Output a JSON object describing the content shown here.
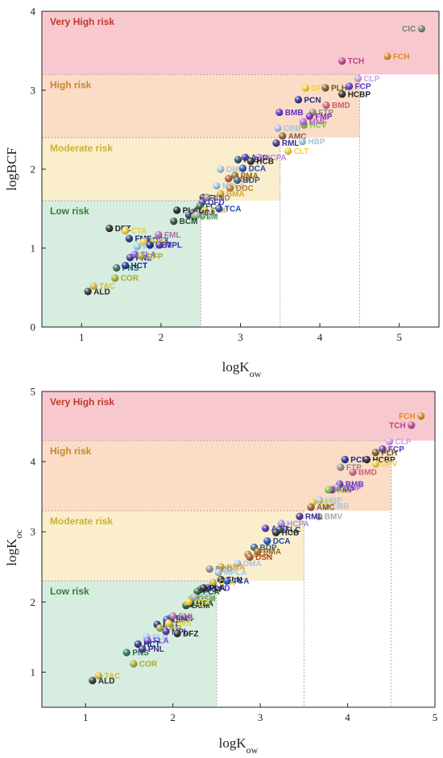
{
  "colors": {
    "zone_very_high": "#f7c9cf",
    "zone_high": "#fbdcc6",
    "zone_moderate": "#fbeecd",
    "zone_low": "#d6ede0",
    "label_very_high": "#c0392b",
    "label_high": "#c8862a",
    "label_moderate": "#c9b230",
    "label_low": "#3d7a3d"
  },
  "chart_data": [
    {
      "type": "scatter",
      "xlabel": "logK",
      "xlabel_sub": "ow",
      "ylabel": "logBCF",
      "ylabel_sub": "",
      "xlim": [
        0.5,
        5.5
      ],
      "ylim": [
        0,
        4
      ],
      "xticks": [
        1,
        2,
        3,
        4,
        5
      ],
      "yticks": [
        0,
        1,
        2,
        3,
        4
      ],
      "zones": [
        {
          "label": "Very High risk",
          "x": [
            0.5,
            5.5
          ],
          "y": [
            3.2,
            4
          ],
          "color_key": "zone_very_high",
          "text_key": "label_very_high"
        },
        {
          "label": "High risk",
          "x": [
            0.5,
            4.5
          ],
          "y": [
            2.4,
            3.2
          ],
          "color_key": "zone_high",
          "text_key": "label_high"
        },
        {
          "label": "Moderate risk",
          "x": [
            0.5,
            3.5
          ],
          "y": [
            1.6,
            2.4
          ],
          "color_key": "zone_moderate",
          "text_key": "label_moderate"
        },
        {
          "label": "Low risk",
          "x": [
            0.5,
            2.5
          ],
          "y": [
            0,
            1.6
          ],
          "color_key": "zone_low",
          "text_key": "label_low"
        }
      ],
      "points": [
        {
          "label": "CIC",
          "x": 5.28,
          "y": 3.78,
          "color": "#7a7a7a"
        },
        {
          "label": "FCH",
          "x": 4.85,
          "y": 3.43,
          "color": "#e08a1e"
        },
        {
          "label": "TCH",
          "x": 4.28,
          "y": 3.37,
          "color": "#c0408a"
        },
        {
          "label": "CLP",
          "x": 4.48,
          "y": 3.15,
          "color": "#cfa0e8"
        },
        {
          "label": "DFV",
          "x": 3.82,
          "y": 3.03,
          "color": "#f2d030"
        },
        {
          "label": "PLH",
          "x": 4.07,
          "y": 3.03,
          "color": "#6b5b1a"
        },
        {
          "label": "FCP",
          "x": 4.37,
          "y": 3.05,
          "color": "#5a32c8"
        },
        {
          "label": "PCN",
          "x": 3.73,
          "y": 2.88,
          "color": "#1a2a8a"
        },
        {
          "label": "HCBP",
          "x": 4.28,
          "y": 2.95,
          "color": "#222222"
        },
        {
          "label": "FTP",
          "x": 3.91,
          "y": 2.72,
          "color": "#8a8a8a"
        },
        {
          "label": "BMD",
          "x": 4.08,
          "y": 2.81,
          "color": "#d05a7a"
        },
        {
          "label": "BMB",
          "x": 3.49,
          "y": 2.72,
          "color": "#5a32c8"
        },
        {
          "label": "CBB",
          "x": 3.47,
          "y": 2.52,
          "color": "#a8c4dc"
        },
        {
          "label": "HCV",
          "x": 3.8,
          "y": 2.56,
          "color": "#7ac440"
        },
        {
          "label": "FMP",
          "x": 3.87,
          "y": 2.67,
          "color": "#7a2aa8"
        },
        {
          "label": "MMF",
          "x": 3.79,
          "y": 2.6,
          "color": "#b060e0"
        },
        {
          "label": "AMC",
          "x": 3.53,
          "y": 2.42,
          "color": "#8a5a30"
        },
        {
          "label": "HBP",
          "x": 3.78,
          "y": 2.35,
          "color": "#a8c4dc"
        },
        {
          "label": "RML",
          "x": 3.45,
          "y": 2.33,
          "color": "#3a2a8a"
        },
        {
          "label": "CLT",
          "x": 3.6,
          "y": 2.23,
          "color": "#f2d030"
        },
        {
          "label": "ACD",
          "x": 3.06,
          "y": 2.15,
          "color": "#4a2aa8"
        },
        {
          "label": "HCPA",
          "x": 3.23,
          "y": 2.15,
          "color": "#b088e0"
        },
        {
          "label": "FLC",
          "x": 2.97,
          "y": 2.12,
          "color": "#1a4a6a"
        },
        {
          "label": "HCB",
          "x": 3.13,
          "y": 2.1,
          "color": "#222222"
        },
        {
          "label": "DMA",
          "x": 2.75,
          "y": 2.0,
          "color": "#a8c4dc"
        },
        {
          "label": "DCA",
          "x": 3.03,
          "y": 2.01,
          "color": "#1a4ab0"
        },
        {
          "label": "DSN",
          "x": 2.85,
          "y": 1.88,
          "color": "#b0502a"
        },
        {
          "label": "PMA",
          "x": 2.93,
          "y": 1.92,
          "color": "#8a6a20"
        },
        {
          "label": "BDP",
          "x": 2.96,
          "y": 1.86,
          "color": "#3a5a7a"
        },
        {
          "label": "MPLA",
          "x": 2.7,
          "y": 1.79,
          "color": "#9ac8e8"
        },
        {
          "label": "DOC",
          "x": 2.87,
          "y": 1.76,
          "color": "#b8802a"
        },
        {
          "label": "BMA",
          "x": 2.75,
          "y": 1.69,
          "color": "#d8a830"
        },
        {
          "label": "FLN",
          "x": 2.53,
          "y": 1.64,
          "color": "#222222"
        },
        {
          "label": "BUD",
          "x": 2.58,
          "y": 1.64,
          "color": "#8a8a8a"
        },
        {
          "label": "PLA",
          "x": 2.2,
          "y": 1.48,
          "color": "#1a1a1a"
        },
        {
          "label": "DFD",
          "x": 2.52,
          "y": 1.58,
          "color": "#5a32c8"
        },
        {
          "label": "FCA",
          "x": 2.49,
          "y": 1.53,
          "color": "#1a5a2a"
        },
        {
          "label": "CTX",
          "x": 2.55,
          "y": 1.48,
          "color": "#c8b830"
        },
        {
          "label": "TCA",
          "x": 2.73,
          "y": 1.5,
          "color": "#1a4ab0"
        },
        {
          "label": "FCT",
          "x": 2.35,
          "y": 1.42,
          "color": "#1a3a8a"
        },
        {
          "label": "HCA",
          "x": 2.4,
          "y": 1.45,
          "color": "#222222"
        },
        {
          "label": "DSM",
          "x": 2.42,
          "y": 1.4,
          "color": "#3aa83a"
        },
        {
          "label": "FDL",
          "x": 2.45,
          "y": 1.42,
          "color": "#a8a8a8"
        },
        {
          "label": "BCM",
          "x": 2.16,
          "y": 1.34,
          "color": "#2a4a2a"
        },
        {
          "label": "DFZ",
          "x": 1.35,
          "y": 1.25,
          "color": "#222222"
        },
        {
          "label": "CTA",
          "x": 1.55,
          "y": 1.22,
          "color": "#f2d030"
        },
        {
          "label": "FMS",
          "x": 1.6,
          "y": 1.12,
          "color": "#1a2a6a"
        },
        {
          "label": "DEX",
          "x": 1.82,
          "y": 1.1,
          "color": "#1a3ab0"
        },
        {
          "label": "FML",
          "x": 1.97,
          "y": 1.17,
          "color": "#b06aa8"
        },
        {
          "label": "PMS",
          "x": 1.78,
          "y": 1.08,
          "color": "#f2d030"
        },
        {
          "label": "FLU",
          "x": 1.7,
          "y": 1.02,
          "color": "#9ac8e8"
        },
        {
          "label": "BET",
          "x": 1.86,
          "y": 1.04,
          "color": "#1a1a6a"
        },
        {
          "label": "MPL",
          "x": 1.98,
          "y": 1.04,
          "color": "#4a2aa8"
        },
        {
          "label": "PNL",
          "x": 1.61,
          "y": 0.88,
          "color": "#3a2a8a"
        },
        {
          "label": "FLA",
          "x": 1.67,
          "y": 0.92,
          "color": "#7a4ad8"
        },
        {
          "label": "DFP",
          "x": 1.75,
          "y": 0.9,
          "color": "#a8a830"
        },
        {
          "label": "PNS",
          "x": 1.44,
          "y": 0.75,
          "color": "#2a6a5a"
        },
        {
          "label": "HCT",
          "x": 1.55,
          "y": 0.78,
          "color": "#1a2a8a"
        },
        {
          "label": "COR",
          "x": 1.42,
          "y": 0.62,
          "color": "#a8a830"
        },
        {
          "label": "ALD",
          "x": 1.08,
          "y": 0.45,
          "color": "#2a2a2a"
        },
        {
          "label": "TAC",
          "x": 1.15,
          "y": 0.52,
          "color": "#d8b830"
        }
      ]
    },
    {
      "type": "scatter",
      "xlabel": "logK",
      "xlabel_sub": "ow",
      "ylabel": "logK",
      "ylabel_sub": "oc",
      "xlim": [
        0.5,
        5
      ],
      "ylim": [
        0.5,
        5
      ],
      "xticks": [
        1,
        2,
        3,
        4,
        5
      ],
      "yticks": [
        1,
        2,
        3,
        4,
        5
      ],
      "zones": [
        {
          "label": "Very High risk",
          "x": [
            0.5,
            5
          ],
          "y": [
            4.3,
            5
          ],
          "color_key": "zone_very_high",
          "text_key": "label_very_high"
        },
        {
          "label": "High risk",
          "x": [
            0.5,
            4.5
          ],
          "y": [
            3.3,
            4.3
          ],
          "color_key": "zone_high",
          "text_key": "label_high"
        },
        {
          "label": "Moderate risk",
          "x": [
            0.5,
            3.5
          ],
          "y": [
            2.3,
            3.3
          ],
          "color_key": "zone_moderate",
          "text_key": "label_moderate"
        },
        {
          "label": "Low risk",
          "x": [
            0.5,
            2.5
          ],
          "y": [
            0.5,
            2.3
          ],
          "color_key": "zone_low",
          "text_key": "label_low"
        }
      ],
      "points": [
        {
          "label": "FCH",
          "x": 4.84,
          "y": 4.65,
          "color": "#e08a1e"
        },
        {
          "label": "TCH",
          "x": 4.73,
          "y": 4.52,
          "color": "#c0408a"
        },
        {
          "label": "CLP",
          "x": 4.48,
          "y": 4.29,
          "color": "#cfa0e8"
        },
        {
          "label": "FCP",
          "x": 4.4,
          "y": 4.18,
          "color": "#5a32c8"
        },
        {
          "label": "PLH",
          "x": 4.32,
          "y": 4.13,
          "color": "#6b5b1a"
        },
        {
          "label": "PCN",
          "x": 3.97,
          "y": 4.03,
          "color": "#1a2a8a"
        },
        {
          "label": "HCBP",
          "x": 4.22,
          "y": 4.03,
          "color": "#222222"
        },
        {
          "label": "DFV",
          "x": 4.32,
          "y": 3.97,
          "color": "#f2d030"
        },
        {
          "label": "FTP",
          "x": 3.92,
          "y": 3.92,
          "color": "#8a8a8a"
        },
        {
          "label": "BMD",
          "x": 4.06,
          "y": 3.85,
          "color": "#d05a7a"
        },
        {
          "label": "BMB",
          "x": 3.91,
          "y": 3.68,
          "color": "#5a32c8"
        },
        {
          "label": "MMF",
          "x": 3.88,
          "y": 3.63,
          "color": "#b060e0"
        },
        {
          "label": "FMP",
          "x": 3.82,
          "y": 3.6,
          "color": "#7a2aa8"
        },
        {
          "label": "HCV",
          "x": 3.78,
          "y": 3.6,
          "color": "#7ac440"
        },
        {
          "label": "HBP",
          "x": 3.68,
          "y": 3.45,
          "color": "#a8c4dc"
        },
        {
          "label": "CBB",
          "x": 3.75,
          "y": 3.37,
          "color": "#a8c4dc"
        },
        {
          "label": "CLT",
          "x": 3.6,
          "y": 3.42,
          "color": "#f2d030"
        },
        {
          "label": "AMC",
          "x": 3.58,
          "y": 3.35,
          "color": "#8a5a30"
        },
        {
          "label": "BMV",
          "x": 3.67,
          "y": 3.22,
          "color": "#a8a8a8"
        },
        {
          "label": "RML",
          "x": 3.45,
          "y": 3.22,
          "color": "#3a2a8a"
        },
        {
          "label": "HCPA",
          "x": 3.24,
          "y": 3.12,
          "color": "#b088e0"
        },
        {
          "label": "ACD",
          "x": 3.06,
          "y": 3.05,
          "color": "#4a2aa8"
        },
        {
          "label": "FLC",
          "x": 3.22,
          "y": 3.03,
          "color": "#1a4a6a"
        },
        {
          "label": "HCB",
          "x": 3.18,
          "y": 2.99,
          "color": "#222222"
        },
        {
          "label": "DCA",
          "x": 3.08,
          "y": 2.87,
          "color": "#1a4ab0"
        },
        {
          "label": "BDP",
          "x": 2.93,
          "y": 2.78,
          "color": "#3a5a7a"
        },
        {
          "label": "PMA",
          "x": 2.97,
          "y": 2.72,
          "color": "#8a6a20"
        },
        {
          "label": "DOC",
          "x": 2.86,
          "y": 2.68,
          "color": "#b8802a"
        },
        {
          "label": "DSN",
          "x": 2.88,
          "y": 2.64,
          "color": "#b0502a"
        },
        {
          "label": "DMA",
          "x": 2.74,
          "y": 2.55,
          "color": "#a8c4dc"
        },
        {
          "label": "BMA",
          "x": 2.55,
          "y": 2.5,
          "color": "#d8a830"
        },
        {
          "label": "BUD",
          "x": 2.42,
          "y": 2.47,
          "color": "#8a8a8a"
        },
        {
          "label": "MPLA",
          "x": 2.52,
          "y": 2.42,
          "color": "#9ac8e8"
        },
        {
          "label": "FLN",
          "x": 2.55,
          "y": 2.32,
          "color": "#222222"
        },
        {
          "label": "CTX",
          "x": 2.46,
          "y": 2.28,
          "color": "#c8b830"
        },
        {
          "label": "TCA",
          "x": 2.62,
          "y": 2.3,
          "color": "#1a4ab0"
        },
        {
          "label": "DFD",
          "x": 2.4,
          "y": 2.2,
          "color": "#5a32c8"
        },
        {
          "label": "FCT",
          "x": 2.32,
          "y": 2.18,
          "color": "#1a3a8a"
        },
        {
          "label": "FCA",
          "x": 2.28,
          "y": 2.15,
          "color": "#1a5a2a"
        },
        {
          "label": "PLA",
          "x": 2.35,
          "y": 2.2,
          "color": "#1a1a1a"
        },
        {
          "label": "HCA",
          "x": 2.2,
          "y": 1.98,
          "color": "#222222"
        },
        {
          "label": "BCM",
          "x": 2.15,
          "y": 1.95,
          "color": "#2a4a2a"
        },
        {
          "label": "DSM",
          "x": 2.22,
          "y": 2.05,
          "color": "#3aa83a"
        },
        {
          "label": "FDL",
          "x": 2.25,
          "y": 2.07,
          "color": "#a8a8a8"
        },
        {
          "label": "CTA",
          "x": 2.18,
          "y": 2.0,
          "color": "#f2d030"
        },
        {
          "label": "FMS",
          "x": 1.97,
          "y": 1.77,
          "color": "#1a2a6a"
        },
        {
          "label": "DEX",
          "x": 1.93,
          "y": 1.75,
          "color": "#1a3ab0"
        },
        {
          "label": "FML",
          "x": 2.0,
          "y": 1.8,
          "color": "#b06aa8"
        },
        {
          "label": "BET",
          "x": 1.82,
          "y": 1.68,
          "color": "#1a1a6a"
        },
        {
          "label": "DFP",
          "x": 1.85,
          "y": 1.63,
          "color": "#a8a830"
        },
        {
          "label": "PMS",
          "x": 1.95,
          "y": 1.7,
          "color": "#f2d030"
        },
        {
          "label": "FLU",
          "x": 1.7,
          "y": 1.5,
          "color": "#9ac8e8"
        },
        {
          "label": "MPL",
          "x": 1.92,
          "y": 1.58,
          "color": "#4a2aa8"
        },
        {
          "label": "DFZ",
          "x": 2.05,
          "y": 1.55,
          "color": "#222222"
        },
        {
          "label": "FLA",
          "x": 1.71,
          "y": 1.45,
          "color": "#7a4ad8"
        },
        {
          "label": "HCT",
          "x": 1.6,
          "y": 1.4,
          "color": "#1a2a8a"
        },
        {
          "label": "PNS",
          "x": 1.47,
          "y": 1.28,
          "color": "#2a6a5a"
        },
        {
          "label": "PNL",
          "x": 1.65,
          "y": 1.33,
          "color": "#3a2a8a"
        },
        {
          "label": "COR",
          "x": 1.55,
          "y": 1.12,
          "color": "#a8a830"
        },
        {
          "label": "TAC",
          "x": 1.15,
          "y": 0.95,
          "color": "#d8b830"
        },
        {
          "label": "ALD",
          "x": 1.08,
          "y": 0.88,
          "color": "#2a2a2a"
        }
      ]
    }
  ]
}
